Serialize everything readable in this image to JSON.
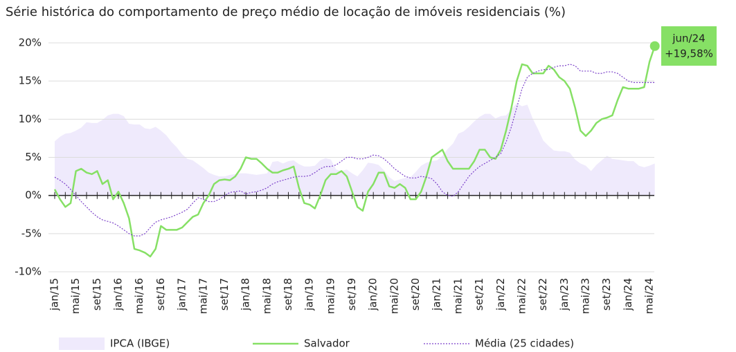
{
  "chart_data": {
    "type": "line",
    "title": "Série histórica do comportamento de preço médio de locação de imóveis residenciais (%)",
    "categories": [
      "jan/15",
      null,
      null,
      null,
      "mai/15",
      null,
      null,
      null,
      "set/15",
      null,
      null,
      null,
      "jan/16",
      null,
      null,
      null,
      "mai/16",
      null,
      null,
      null,
      "set/16",
      null,
      null,
      null,
      "jan/17",
      null,
      null,
      null,
      "mai/17",
      null,
      null,
      null,
      "set/17",
      null,
      null,
      null,
      "jan/18",
      null,
      null,
      null,
      "mai/18",
      null,
      null,
      null,
      "set/18",
      null,
      null,
      null,
      "jan/19",
      null,
      null,
      null,
      "mai/19",
      null,
      null,
      null,
      "set/19",
      null,
      null,
      null,
      "jan/20",
      null,
      null,
      null,
      "mai/20",
      null,
      null,
      null,
      "set/20",
      null,
      null,
      null,
      "jan/21",
      null,
      null,
      null,
      "mai/21",
      null,
      null,
      null,
      "set/21",
      null,
      null,
      null,
      "jan/22",
      null,
      null,
      null,
      "mai/22",
      null,
      null,
      null,
      "set/22",
      null,
      null,
      null,
      "jan/23",
      null,
      null,
      null,
      "mai/23",
      null,
      null,
      null,
      "set/23",
      null,
      null,
      null,
      "jan/24",
      null,
      null,
      null,
      "mai/24",
      null
    ],
    "series": [
      {
        "name": "IPCA (IBGE)",
        "kind": "area",
        "color": "#efeafc",
        "values": [
          7.1,
          7.7,
          8.1,
          8.2,
          8.5,
          8.9,
          9.6,
          9.5,
          9.5,
          9.9,
          10.5,
          10.7,
          10.7,
          10.4,
          9.4,
          9.3,
          9.3,
          8.8,
          8.7,
          9.0,
          8.5,
          7.9,
          7.0,
          6.3,
          5.4,
          4.8,
          4.6,
          4.1,
          3.6,
          3.0,
          2.7,
          2.5,
          2.5,
          2.7,
          2.8,
          2.9,
          2.9,
          2.8,
          2.7,
          2.8,
          2.9,
          4.4,
          4.5,
          4.2,
          4.5,
          4.6,
          4.1,
          3.8,
          3.8,
          3.9,
          4.6,
          4.9,
          4.7,
          3.4,
          3.2,
          3.4,
          2.9,
          2.5,
          3.3,
          4.3,
          4.2,
          4.0,
          3.3,
          2.4,
          1.9,
          2.1,
          2.3,
          2.4,
          3.1,
          3.9,
          4.3,
          4.5,
          4.6,
          5.2,
          6.1,
          6.8,
          8.1,
          8.4,
          9.0,
          9.7,
          10.3,
          10.7,
          10.7,
          10.1,
          10.4,
          10.5,
          11.3,
          12.1,
          11.7,
          11.9,
          10.1,
          8.7,
          7.2,
          6.5,
          5.9,
          5.8,
          5.8,
          5.6,
          4.7,
          4.2,
          3.9,
          3.2,
          4.0,
          4.6,
          5.2,
          4.8,
          4.7,
          4.6,
          4.5,
          4.5,
          3.9,
          3.7,
          3.9,
          4.2
        ]
      },
      {
        "name": "Salvador",
        "kind": "line",
        "color": "#86e065",
        "values": [
          0.8,
          -0.5,
          -1.5,
          -1,
          3.2,
          3.5,
          3.0,
          2.8,
          3.2,
          1.5,
          2.0,
          -0.5,
          0.5,
          -1,
          -3,
          -7,
          -7.2,
          -7.5,
          -8.0,
          -7,
          -4,
          -4.5,
          -4.5,
          -4.5,
          -4.2,
          -3.5,
          -2.8,
          -2.5,
          -1,
          0,
          1.5,
          2.0,
          2.1,
          2.0,
          2.5,
          3.5,
          5.0,
          4.8,
          4.8,
          4.2,
          3.5,
          3.0,
          3.0,
          3.3,
          3.5,
          3.8,
          1.0,
          -1.0,
          -1.2,
          -1.7,
          0,
          2.0,
          2.8,
          2.8,
          3.2,
          2.5,
          0.5,
          -1.5,
          -2.0,
          0.5,
          1.5,
          3.0,
          3.0,
          1.2,
          1.0,
          1.5,
          1.0,
          -0.5,
          -0.5,
          0.5,
          2.5,
          5.0,
          5.5,
          6.0,
          4.5,
          3.5,
          3.5,
          3.5,
          3.5,
          4.5,
          6.0,
          6.0,
          5.0,
          4.8,
          6.0,
          8.5,
          11.5,
          15.0,
          17.2,
          17.0,
          16.0,
          16.0,
          16.0,
          17.0,
          16.5,
          15.5,
          15.0,
          14.0,
          11.5,
          8.5,
          7.8,
          8.5,
          9.5,
          10.0,
          10.2,
          10.5,
          12.5,
          14.2,
          14.0,
          14.0,
          14.0,
          14.2,
          17.5,
          19.58
        ],
        "value_labels": [
          null,
          null,
          null,
          null,
          null,
          null,
          null,
          null,
          null,
          null,
          null,
          null,
          null,
          null,
          null,
          null,
          null,
          null,
          null,
          null,
          null,
          null,
          null,
          null,
          null,
          null,
          null,
          null,
          null,
          null,
          null,
          null,
          null,
          null,
          null,
          null,
          null,
          null,
          null,
          null,
          null,
          null,
          null,
          null,
          null,
          null,
          null,
          null,
          null,
          null,
          null,
          null,
          null,
          null,
          null,
          null,
          null,
          null,
          null,
          null,
          null,
          null,
          null,
          null,
          null,
          null,
          null,
          null,
          null,
          null,
          null,
          null,
          null,
          null,
          null,
          null,
          null,
          null,
          null,
          null,
          null,
          null,
          null,
          null,
          null,
          null,
          null,
          null,
          null,
          null,
          null,
          null,
          null,
          null,
          null,
          null,
          null,
          null,
          null,
          null,
          null,
          null,
          null,
          null,
          null,
          null,
          null,
          null,
          null,
          null,
          null,
          null,
          null,
          "+19,58%"
        ]
      },
      {
        "name": "Média (25 cidades)",
        "kind": "dotted",
        "color": "#7a3fc9",
        "values": [
          2.4,
          2.0,
          1.5,
          0.8,
          0,
          -0.8,
          -1.5,
          -2.2,
          -2.8,
          -3.2,
          -3.4,
          -3.6,
          -4.0,
          -4.5,
          -5.0,
          -5.3,
          -5.3,
          -5.0,
          -4.2,
          -3.5,
          -3.2,
          -3.0,
          -2.8,
          -2.5,
          -2.2,
          -1.8,
          -1.0,
          -0.3,
          -0.5,
          -0.8,
          -0.8,
          -0.5,
          0,
          0.4,
          0.5,
          0.6,
          0.2,
          0.4,
          0.5,
          0.7,
          1.0,
          1.5,
          1.8,
          2.0,
          2.2,
          2.4,
          2.5,
          2.5,
          2.6,
          3.0,
          3.5,
          3.8,
          3.8,
          4.0,
          4.5,
          5.0,
          5.0,
          4.8,
          4.8,
          5.0,
          5.3,
          5.2,
          4.8,
          4.2,
          3.5,
          3.0,
          2.5,
          2.3,
          2.3,
          2.5,
          2.4,
          2.2,
          1.5,
          0.5,
          0.0,
          -0.1,
          0.5,
          1.5,
          2.5,
          3.2,
          3.8,
          4.2,
          4.6,
          5.0,
          5.5,
          7.0,
          9.0,
          11.5,
          14.0,
          15.5,
          16.0,
          16.3,
          16.5,
          16.5,
          16.8,
          17.0,
          17.0,
          17.2,
          17.0,
          16.3,
          16.3,
          16.3,
          16.0,
          16.0,
          16.2,
          16.2,
          16.0,
          15.5,
          15.0,
          14.8,
          14.8,
          14.8,
          14.8,
          14.8
        ]
      }
    ],
    "annotation": "jun/24",
    "ylim": [
      -10,
      20
    ],
    "yticks": [
      {
        "value": -10,
        "label": "-10%"
      },
      {
        "value": -5,
        "label": "-5%"
      },
      {
        "value": 0,
        "label": "0%"
      },
      {
        "value": 5,
        "label": "5%"
      },
      {
        "value": 10,
        "label": "10%"
      },
      {
        "value": 15,
        "label": "15%"
      },
      {
        "value": 20,
        "label": "20%"
      }
    ],
    "grid": true,
    "legend": "bottom"
  }
}
